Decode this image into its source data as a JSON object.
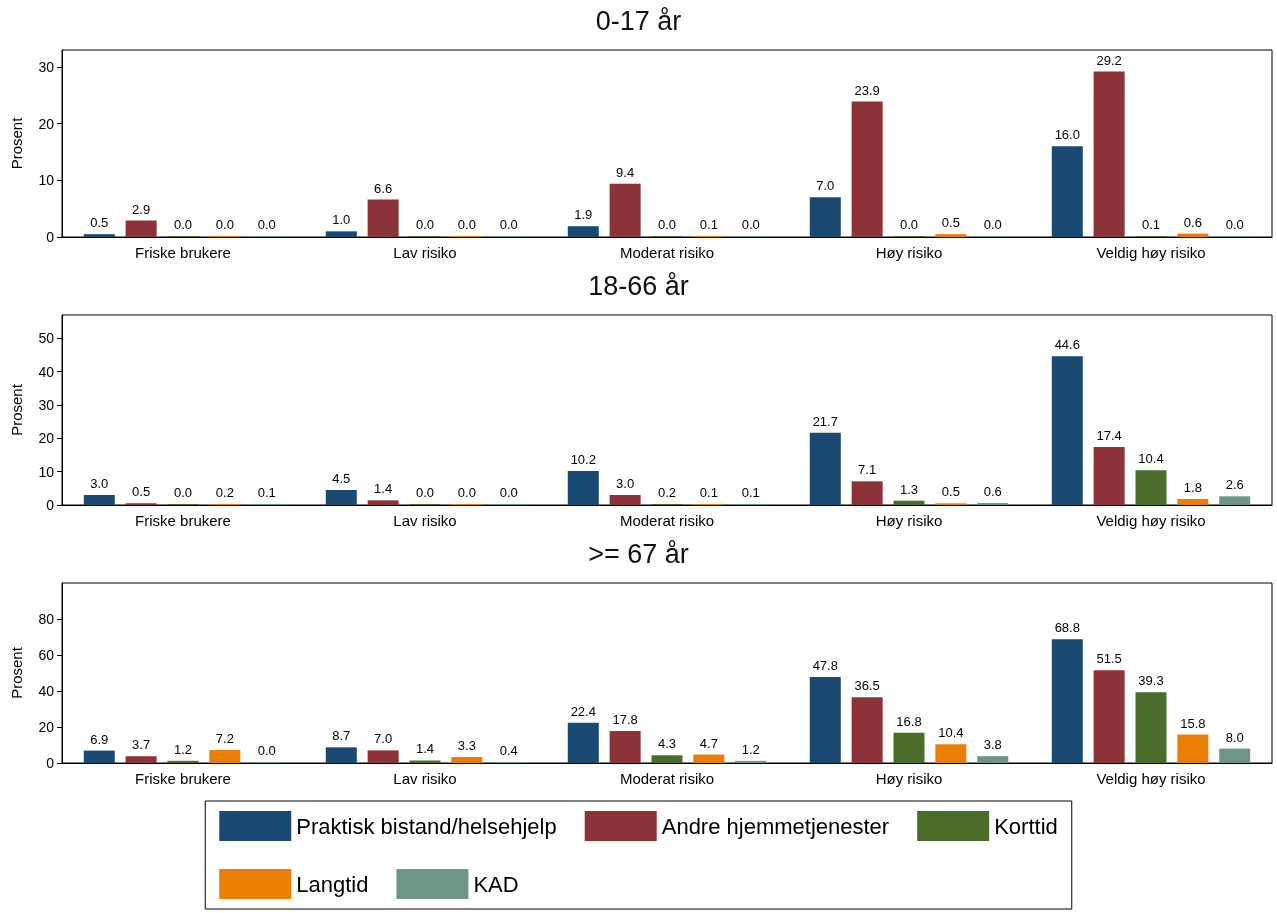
{
  "chart_data": [
    {
      "type": "bar",
      "title": "0-17 år",
      "ylabel": "Prosent",
      "categories": [
        "Friske brukere",
        "Lav risiko",
        "Moderat risiko",
        "Høy risiko",
        "Veldig høy risiko"
      ],
      "ylim": [
        0,
        33
      ],
      "yticks": [
        0,
        10,
        20,
        30
      ],
      "series": [
        {
          "color": "#1a4a72",
          "values": [
            0.5,
            1.0,
            1.9,
            7.0,
            16.0
          ],
          "value_labels": [
            "0.5",
            "1.0",
            "1.9",
            "7.0",
            "16.0"
          ]
        },
        {
          "color": "#8b3338",
          "values": [
            2.9,
            6.6,
            9.4,
            23.9,
            29.2
          ],
          "value_labels": [
            "2.9",
            "6.6",
            "9.4",
            "23.9",
            "29.2"
          ]
        },
        {
          "color": "#4a6e2a",
          "values": [
            0.0,
            0.0,
            0.0,
            0.0,
            0.1
          ],
          "value_labels": [
            "0.0",
            "0.0",
            "0.0",
            "0.0",
            "0.1"
          ]
        },
        {
          "color": "#e87e04",
          "values": [
            0.0,
            0.0,
            0.1,
            0.5,
            0.6
          ],
          "value_labels": [
            "0.0",
            "0.0",
            "0.1",
            "0.5",
            "0.6"
          ]
        },
        {
          "color": "#6f9586",
          "values": [
            0.0,
            0.0,
            0.0,
            0.0,
            0.0
          ],
          "value_labels": [
            "0.0",
            "0.0",
            "0.0",
            "0.0",
            "0.0"
          ]
        }
      ]
    },
    {
      "type": "bar",
      "title": "18-66 år",
      "ylabel": "Prosent",
      "categories": [
        "Friske brukere",
        "Lav risiko",
        "Moderat risiko",
        "Høy risiko",
        "Veldig høy risiko"
      ],
      "ylim": [
        0,
        57
      ],
      "yticks": [
        0,
        10,
        20,
        30,
        40,
        50
      ],
      "series": [
        {
          "color": "#1a4a72",
          "values": [
            3.0,
            4.5,
            10.2,
            21.7,
            44.6
          ],
          "value_labels": [
            "3.0",
            "4.5",
            "10.2",
            "21.7",
            "44.6"
          ]
        },
        {
          "color": "#8b3338",
          "values": [
            0.5,
            1.4,
            3.0,
            7.1,
            17.4
          ],
          "value_labels": [
            "0.5",
            "1.4",
            "3.0",
            "7.1",
            "17.4"
          ]
        },
        {
          "color": "#4a6e2a",
          "values": [
            0.0,
            0.0,
            0.2,
            1.3,
            10.4
          ],
          "value_labels": [
            "0.0",
            "0.0",
            "0.2",
            "1.3",
            "10.4"
          ]
        },
        {
          "color": "#e87e04",
          "values": [
            0.2,
            0.0,
            0.1,
            0.5,
            1.8
          ],
          "value_labels": [
            "0.2",
            "0.0",
            "0.1",
            "0.5",
            "1.8"
          ]
        },
        {
          "color": "#6f9586",
          "values": [
            0.1,
            0.0,
            0.1,
            0.6,
            2.6
          ],
          "value_labels": [
            "0.1",
            "0.0",
            "0.1",
            "0.6",
            "2.6"
          ]
        }
      ]
    },
    {
      "type": "bar",
      "title": ">= 67 år",
      "ylabel": "Prosent",
      "categories": [
        "Friske brukere",
        "Lav risiko",
        "Moderat risiko",
        "Høy risiko",
        "Veldig høy risiko"
      ],
      "ylim": [
        0,
        100
      ],
      "yticks": [
        0,
        20,
        40,
        60,
        80
      ],
      "legend": "bottom",
      "series": [
        {
          "name": "Praktisk bistand/helsehjelp",
          "color": "#1a4a72",
          "values": [
            6.9,
            8.7,
            22.4,
            47.8,
            68.8
          ],
          "value_labels": [
            "6.9",
            "8.7",
            "22.4",
            "47.8",
            "68.8"
          ]
        },
        {
          "name": "Andre hjemmetjenester",
          "color": "#8b3338",
          "values": [
            3.7,
            7.0,
            17.8,
            36.5,
            51.5
          ],
          "value_labels": [
            "3.7",
            "7.0",
            "17.8",
            "36.5",
            "51.5"
          ]
        },
        {
          "name": "Korttid",
          "color": "#4a6e2a",
          "values": [
            1.2,
            1.4,
            4.3,
            16.8,
            39.3
          ],
          "value_labels": [
            "1.2",
            "1.4",
            "4.3",
            "16.8",
            "39.3"
          ]
        },
        {
          "name": "Langtid",
          "color": "#e87e04",
          "values": [
            7.2,
            3.3,
            4.7,
            10.4,
            15.8
          ],
          "value_labels": [
            "7.2",
            "3.3",
            "4.7",
            "10.4",
            "15.8"
          ]
        },
        {
          "name": "KAD",
          "color": "#6f9586",
          "values": [
            0.0,
            0.4,
            1.2,
            3.8,
            8.0
          ],
          "value_labels": [
            "0.0",
            "0.4",
            "1.2",
            "3.8",
            "8.0"
          ]
        }
      ]
    }
  ]
}
